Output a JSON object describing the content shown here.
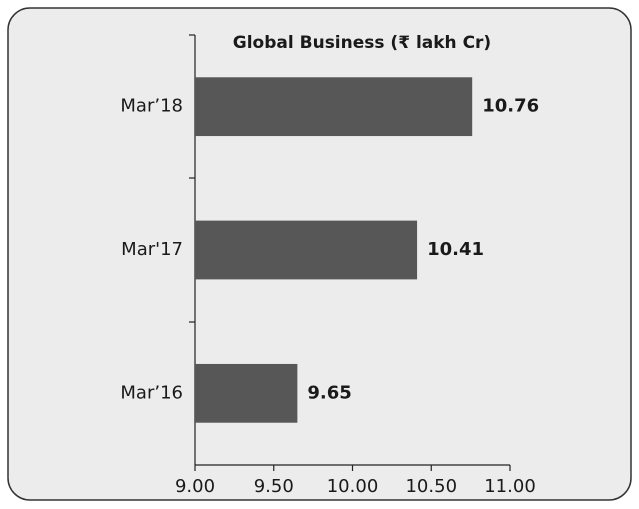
{
  "chart_data": {
    "type": "hbar",
    "title": "Global Business (₹ lakh Cr)",
    "categories": [
      "Mar’18",
      "Mar'17",
      "Mar’16"
    ],
    "values": [
      10.76,
      10.41,
      9.65
    ],
    "color": "#575757",
    "xlim": [
      9,
      11
    ],
    "xticks": [
      {
        "value": 9,
        "label": "9.00"
      },
      {
        "value": 9.5,
        "label": "9.50"
      },
      {
        "value": 10,
        "label": "10.00"
      },
      {
        "value": 10.5,
        "label": "10.50"
      },
      {
        "value": 11,
        "label": "11.00"
      }
    ]
  }
}
